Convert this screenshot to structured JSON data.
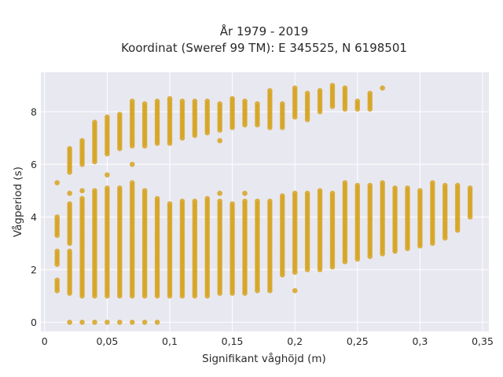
{
  "chart_data": {
    "type": "scatter",
    "title_line1": "År 1979 - 2019",
    "title_line2": "Koordinat (Sweref 99 TM): E 345525, N 6198501",
    "xlabel": "Signifikant våghöjd (m)",
    "ylabel": "Vågperiod (s)",
    "xlim": [
      -0.003,
      0.355
    ],
    "ylim": [
      -0.35,
      9.5
    ],
    "xticks": [
      0,
      0.05,
      0.1,
      0.15,
      0.2,
      0.25,
      0.3,
      0.35
    ],
    "xtick_labels": [
      "0",
      "0,05",
      "0,1",
      "0,15",
      "0,2",
      "0,25",
      "0,3",
      "0,35"
    ],
    "yticks": [
      0,
      2,
      4,
      6,
      8
    ],
    "ytick_labels": [
      "0",
      "2",
      "4",
      "6",
      "8"
    ],
    "grid": true,
    "background": "#e8e8f0",
    "marker_color": "#d6a321",
    "x_step": 0.01,
    "series": [
      {
        "points_comment_free": true,
        "columns": [
          {
            "x": 0.01,
            "ranges": [
              [
                1.2,
                1.6
              ],
              [
                2.2,
                2.7
              ],
              [
                3.3,
                4.0
              ],
              [
                5.3,
                5.3
              ]
            ]
          },
          {
            "x": 0.02,
            "ranges": [
              [
                0.0,
                0.0
              ],
              [
                1.1,
                2.7
              ],
              [
                3.0,
                4.5
              ],
              [
                4.9,
                4.9
              ],
              [
                5.7,
                6.6
              ]
            ]
          },
          {
            "x": 0.03,
            "ranges": [
              [
                0.0,
                0.0
              ],
              [
                1.0,
                4.7
              ],
              [
                5.0,
                5.0
              ],
              [
                6.0,
                6.9
              ]
            ]
          },
          {
            "x": 0.04,
            "ranges": [
              [
                0.0,
                0.0
              ],
              [
                1.0,
                5.0
              ],
              [
                6.1,
                7.6
              ]
            ]
          },
          {
            "x": 0.05,
            "ranges": [
              [
                0.0,
                0.0
              ],
              [
                1.0,
                5.1
              ],
              [
                5.6,
                5.6
              ],
              [
                6.4,
                7.8
              ]
            ]
          },
          {
            "x": 0.06,
            "ranges": [
              [
                0.0,
                0.0
              ],
              [
                1.0,
                5.1
              ],
              [
                6.6,
                7.9
              ]
            ]
          },
          {
            "x": 0.07,
            "ranges": [
              [
                0.0,
                0.0
              ],
              [
                1.0,
                5.3
              ],
              [
                6.0,
                6.0
              ],
              [
                6.7,
                8.4
              ]
            ]
          },
          {
            "x": 0.08,
            "ranges": [
              [
                0.0,
                0.0
              ],
              [
                1.0,
                5.0
              ],
              [
                6.7,
                8.3
              ]
            ]
          },
          {
            "x": 0.09,
            "ranges": [
              [
                0.0,
                0.0
              ],
              [
                1.0,
                4.7
              ],
              [
                6.8,
                8.4
              ]
            ]
          },
          {
            "x": 0.1,
            "ranges": [
              [
                1.0,
                4.5
              ],
              [
                6.8,
                8.5
              ]
            ]
          },
          {
            "x": 0.11,
            "ranges": [
              [
                1.0,
                4.6
              ],
              [
                7.0,
                8.4
              ]
            ]
          },
          {
            "x": 0.12,
            "ranges": [
              [
                1.0,
                4.6
              ],
              [
                7.1,
                8.4
              ]
            ]
          },
          {
            "x": 0.13,
            "ranges": [
              [
                1.0,
                4.7
              ],
              [
                7.2,
                8.4
              ]
            ]
          },
          {
            "x": 0.14,
            "ranges": [
              [
                1.1,
                4.6
              ],
              [
                4.9,
                4.9
              ],
              [
                6.9,
                6.9
              ],
              [
                7.3,
                8.3
              ]
            ]
          },
          {
            "x": 0.15,
            "ranges": [
              [
                1.1,
                4.5
              ],
              [
                7.4,
                8.5
              ]
            ]
          },
          {
            "x": 0.16,
            "ranges": [
              [
                1.1,
                4.6
              ],
              [
                4.9,
                4.9
              ],
              [
                7.5,
                8.4
              ]
            ]
          },
          {
            "x": 0.17,
            "ranges": [
              [
                1.2,
                4.6
              ],
              [
                7.5,
                8.3
              ]
            ]
          },
          {
            "x": 0.18,
            "ranges": [
              [
                1.2,
                4.6
              ],
              [
                7.4,
                8.8
              ]
            ]
          },
          {
            "x": 0.19,
            "ranges": [
              [
                1.8,
                4.8
              ],
              [
                7.4,
                8.3
              ]
            ]
          },
          {
            "x": 0.2,
            "ranges": [
              [
                1.2,
                1.2
              ],
              [
                1.9,
                4.9
              ],
              [
                7.8,
                8.9
              ]
            ]
          },
          {
            "x": 0.21,
            "ranges": [
              [
                2.0,
                4.9
              ],
              [
                7.7,
                8.7
              ]
            ]
          },
          {
            "x": 0.22,
            "ranges": [
              [
                2.0,
                5.0
              ],
              [
                8.0,
                8.8
              ]
            ]
          },
          {
            "x": 0.23,
            "ranges": [
              [
                2.1,
                4.9
              ],
              [
                8.2,
                9.0
              ]
            ]
          },
          {
            "x": 0.24,
            "ranges": [
              [
                2.3,
                5.3
              ],
              [
                8.1,
                8.9
              ]
            ]
          },
          {
            "x": 0.25,
            "ranges": [
              [
                2.4,
                5.2
              ],
              [
                8.1,
                8.4
              ]
            ]
          },
          {
            "x": 0.26,
            "ranges": [
              [
                2.5,
                5.2
              ],
              [
                8.1,
                8.7
              ]
            ]
          },
          {
            "x": 0.27,
            "ranges": [
              [
                2.6,
                5.3
              ],
              [
                8.9,
                8.9
              ]
            ]
          },
          {
            "x": 0.28,
            "ranges": [
              [
                2.7,
                5.1
              ]
            ]
          },
          {
            "x": 0.29,
            "ranges": [
              [
                2.8,
                5.1
              ]
            ]
          },
          {
            "x": 0.3,
            "ranges": [
              [
                2.9,
                5.0
              ]
            ]
          },
          {
            "x": 0.31,
            "ranges": [
              [
                3.0,
                5.3
              ]
            ]
          },
          {
            "x": 0.32,
            "ranges": [
              [
                3.2,
                5.2
              ]
            ]
          },
          {
            "x": 0.33,
            "ranges": [
              [
                3.5,
                5.2
              ]
            ]
          },
          {
            "x": 0.34,
            "ranges": [
              [
                4.0,
                5.1
              ]
            ]
          }
        ]
      }
    ]
  }
}
